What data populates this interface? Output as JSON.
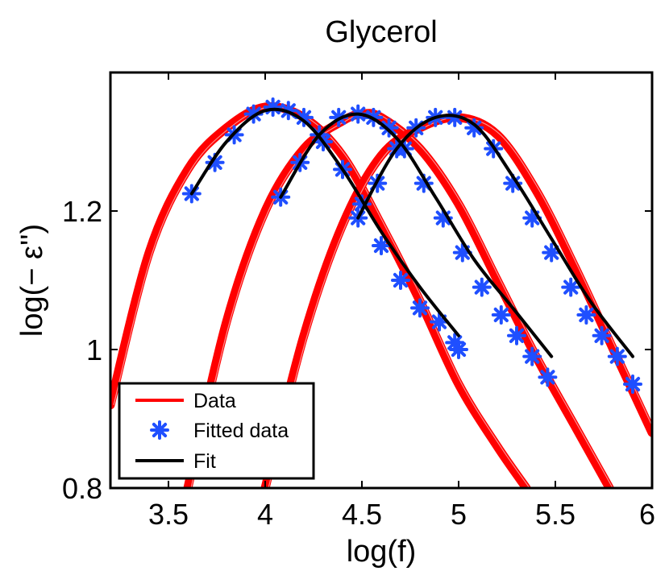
{
  "chart_data": {
    "type": "line",
    "title": "Glycerol",
    "xlabel": "log(f)",
    "ylabel": "log(− ε'')",
    "xlim": [
      3.2,
      6.0
    ],
    "ylim": [
      0.8,
      1.4
    ],
    "xticks": [
      3.5,
      4,
      4.5,
      5,
      5.5,
      6
    ],
    "xtick_labels": [
      "3.5",
      "4",
      "4.5",
      "5",
      "5.5",
      "6"
    ],
    "yticks": [
      0.8,
      1.0,
      1.2
    ],
    "ytick_labels": [
      "0.8",
      "1",
      "1.2"
    ],
    "grid": false,
    "legend_position": "bottom-left",
    "legend": [
      {
        "label": "Data",
        "style": "line",
        "color": "#ff0000"
      },
      {
        "label": "Fitted data",
        "style": "marker",
        "color": "#1f4fff"
      },
      {
        "label": "Fit",
        "style": "line",
        "color": "#000000"
      }
    ],
    "series": [
      {
        "name": "Data",
        "color": "#ff0000",
        "curves": [
          {
            "x": [
              3.2,
              3.4,
              3.6,
              3.8,
              4.0,
              4.2,
              4.4,
              4.6,
              4.8,
              5.0,
              5.2,
              5.35
            ],
            "y": [
              0.92,
              1.14,
              1.26,
              1.32,
              1.35,
              1.335,
              1.28,
              1.18,
              1.07,
              0.95,
              0.86,
              0.8
            ]
          },
          {
            "x": [
              3.6,
              3.8,
              4.0,
              4.2,
              4.4,
              4.5,
              4.6,
              4.8,
              5.0,
              5.2,
              5.4,
              5.6,
              5.78
            ],
            "y": [
              0.8,
              1.04,
              1.2,
              1.29,
              1.33,
              1.34,
              1.335,
              1.29,
              1.21,
              1.1,
              0.99,
              0.89,
              0.8
            ]
          },
          {
            "x": [
              4.0,
              4.2,
              4.4,
              4.6,
              4.8,
              5.0,
              5.2,
              5.4,
              5.6,
              5.8,
              6.0
            ],
            "y": [
              0.8,
              1.02,
              1.18,
              1.28,
              1.32,
              1.335,
              1.31,
              1.23,
              1.12,
              1.0,
              0.88
            ]
          }
        ]
      },
      {
        "name": "Fitted data",
        "color": "#1f4fff",
        "curves": [
          {
            "x": [
              3.62,
              3.74,
              3.84,
              3.94,
              4.04,
              4.12,
              4.2,
              4.3,
              4.4,
              4.5,
              4.6,
              4.7,
              4.8,
              4.9,
              4.98,
              5.0
            ],
            "y": [
              1.225,
              1.27,
              1.31,
              1.34,
              1.35,
              1.345,
              1.335,
              1.3,
              1.26,
              1.21,
              1.15,
              1.1,
              1.06,
              1.04,
              1.01,
              1.0
            ]
          },
          {
            "x": [
              4.08,
              4.18,
              4.28,
              4.38,
              4.48,
              4.56,
              4.64,
              4.72,
              4.82,
              4.92,
              5.02,
              5.12,
              5.22,
              5.3,
              5.38,
              5.46
            ],
            "y": [
              1.22,
              1.27,
              1.31,
              1.335,
              1.34,
              1.335,
              1.32,
              1.29,
              1.24,
              1.19,
              1.14,
              1.09,
              1.05,
              1.02,
              0.99,
              0.96
            ]
          },
          {
            "x": [
              4.48,
              4.58,
              4.68,
              4.78,
              4.88,
              4.98,
              5.08,
              5.18,
              5.28,
              5.38,
              5.48,
              5.58,
              5.66,
              5.74,
              5.82,
              5.9
            ],
            "y": [
              1.19,
              1.24,
              1.29,
              1.32,
              1.335,
              1.335,
              1.32,
              1.29,
              1.24,
              1.19,
              1.14,
              1.09,
              1.05,
              1.02,
              0.99,
              0.95
            ]
          }
        ]
      },
      {
        "name": "Fit",
        "color": "#000000",
        "curves": [
          {
            "x": [
              3.62,
              3.8,
              4.0,
              4.2,
              4.4,
              4.6,
              4.8,
              5.0
            ],
            "y": [
              1.225,
              1.3,
              1.345,
              1.33,
              1.26,
              1.17,
              1.09,
              1.02
            ]
          },
          {
            "x": [
              4.08,
              4.28,
              4.48,
              4.68,
              4.88,
              5.08,
              5.28,
              5.48
            ],
            "y": [
              1.22,
              1.31,
              1.34,
              1.305,
              1.22,
              1.13,
              1.06,
              0.99
            ]
          },
          {
            "x": [
              4.48,
              4.68,
              4.88,
              5.08,
              5.28,
              5.48,
              5.68,
              5.9
            ],
            "y": [
              1.19,
              1.29,
              1.335,
              1.325,
              1.25,
              1.16,
              1.07,
              0.99
            ]
          }
        ]
      }
    ]
  }
}
